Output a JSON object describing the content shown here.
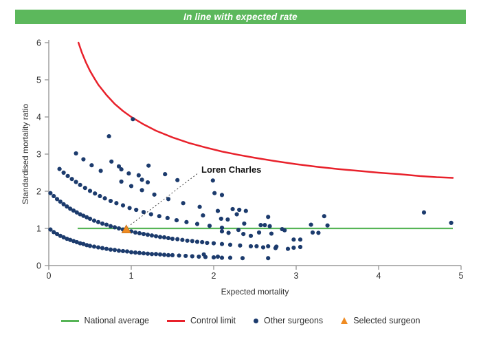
{
  "banner": {
    "text": "In line with expected rate",
    "bg_color": "#5cb85c",
    "text_color": "#ffffff"
  },
  "chart_data": {
    "type": "scatter",
    "title": "In line with expected rate",
    "xlabel": "Expected mortality",
    "ylabel": "Standardised mortality ratio",
    "xlim": [
      0,
      5
    ],
    "ylim": [
      0,
      6
    ],
    "xticks": [
      0,
      1,
      2,
      3,
      4,
      5
    ],
    "yticks": [
      0,
      1,
      2,
      3,
      4,
      5,
      6
    ],
    "grid": false,
    "legend_position": "bottom",
    "axis_color": "#9a9a9a",
    "tick_text_color": "#303030",
    "national_average": {
      "label": "National average",
      "color": "#56b456",
      "y": 1,
      "x_start": 0.35,
      "x_end": 4.9
    },
    "control_limit": {
      "label": "Control limit",
      "color": "#e8212b",
      "points": [
        [
          0.36,
          6.0
        ],
        [
          0.4,
          5.74
        ],
        [
          0.45,
          5.47
        ],
        [
          0.5,
          5.24
        ],
        [
          0.55,
          5.05
        ],
        [
          0.6,
          4.87
        ],
        [
          0.7,
          4.59
        ],
        [
          0.8,
          4.35
        ],
        [
          0.9,
          4.16
        ],
        [
          1.0,
          4.0
        ],
        [
          1.15,
          3.8
        ],
        [
          1.3,
          3.63
        ],
        [
          1.5,
          3.45
        ],
        [
          1.7,
          3.3
        ],
        [
          1.9,
          3.18
        ],
        [
          2.1,
          3.07
        ],
        [
          2.3,
          2.98
        ],
        [
          2.5,
          2.9
        ],
        [
          2.75,
          2.81
        ],
        [
          3.0,
          2.73
        ],
        [
          3.25,
          2.66
        ],
        [
          3.5,
          2.6
        ],
        [
          3.75,
          2.55
        ],
        [
          4.0,
          2.5
        ],
        [
          4.25,
          2.46
        ],
        [
          4.5,
          2.41
        ],
        [
          4.7,
          2.38
        ],
        [
          4.9,
          2.36
        ]
      ]
    },
    "other_surgeons": {
      "label": "Other surgeons",
      "color": "#1c3b6d",
      "points": [
        [
          0.02,
          0.97
        ],
        [
          0.06,
          0.9
        ],
        [
          0.1,
          0.85
        ],
        [
          0.14,
          0.8
        ],
        [
          0.18,
          0.76
        ],
        [
          0.22,
          0.72
        ],
        [
          0.26,
          0.69
        ],
        [
          0.3,
          0.66
        ],
        [
          0.34,
          0.63
        ],
        [
          0.38,
          0.6
        ],
        [
          0.42,
          0.58
        ],
        [
          0.46,
          0.55
        ],
        [
          0.5,
          0.53
        ],
        [
          0.55,
          0.51
        ],
        [
          0.6,
          0.49
        ],
        [
          0.65,
          0.47
        ],
        [
          0.7,
          0.45
        ],
        [
          0.75,
          0.43
        ],
        [
          0.8,
          0.42
        ],
        [
          0.85,
          0.4
        ],
        [
          0.9,
          0.39
        ],
        [
          0.95,
          0.38
        ],
        [
          1.0,
          0.36
        ],
        [
          1.05,
          0.35
        ],
        [
          1.1,
          0.34
        ],
        [
          1.15,
          0.33
        ],
        [
          1.2,
          0.32
        ],
        [
          1.25,
          0.31
        ],
        [
          1.3,
          0.31
        ],
        [
          1.35,
          0.3
        ],
        [
          1.4,
          0.29
        ],
        [
          1.45,
          0.28
        ],
        [
          1.5,
          0.28
        ],
        [
          1.58,
          0.27
        ],
        [
          1.66,
          0.26
        ],
        [
          1.74,
          0.25
        ],
        [
          1.82,
          0.24
        ],
        [
          1.9,
          0.23
        ],
        [
          2.0,
          0.22
        ],
        [
          2.1,
          0.21
        ],
        [
          2.2,
          0.21
        ],
        [
          2.35,
          0.2
        ],
        [
          2.66,
          0.2
        ],
        [
          0.02,
          1.95
        ],
        [
          0.06,
          1.87
        ],
        [
          0.1,
          1.79
        ],
        [
          0.14,
          1.72
        ],
        [
          0.18,
          1.65
        ],
        [
          0.22,
          1.59
        ],
        [
          0.26,
          1.53
        ],
        [
          0.3,
          1.48
        ],
        [
          0.34,
          1.43
        ],
        [
          0.38,
          1.38
        ],
        [
          0.42,
          1.34
        ],
        [
          0.46,
          1.3
        ],
        [
          0.5,
          1.26
        ],
        [
          0.55,
          1.21
        ],
        [
          0.6,
          1.17
        ],
        [
          0.65,
          1.13
        ],
        [
          0.7,
          1.1
        ],
        [
          0.75,
          1.06
        ],
        [
          0.8,
          1.03
        ],
        [
          0.85,
          1.0
        ],
        [
          0.9,
          0.97
        ],
        [
          0.95,
          0.94
        ],
        [
          1.0,
          0.92
        ],
        [
          1.05,
          0.89
        ],
        [
          1.1,
          0.87
        ],
        [
          1.15,
          0.85
        ],
        [
          1.2,
          0.83
        ],
        [
          1.25,
          0.81
        ],
        [
          1.3,
          0.79
        ],
        [
          1.35,
          0.77
        ],
        [
          1.4,
          0.76
        ],
        [
          1.45,
          0.74
        ],
        [
          1.5,
          0.72
        ],
        [
          1.56,
          0.71
        ],
        [
          1.62,
          0.69
        ],
        [
          1.68,
          0.67
        ],
        [
          1.74,
          0.66
        ],
        [
          1.8,
          0.64
        ],
        [
          1.86,
          0.63
        ],
        [
          1.92,
          0.61
        ],
        [
          2.0,
          0.6
        ],
        [
          2.1,
          0.58
        ],
        [
          2.2,
          0.56
        ],
        [
          2.32,
          0.54
        ],
        [
          2.45,
          0.52
        ],
        [
          2.6,
          0.49
        ],
        [
          2.75,
          0.47
        ],
        [
          2.9,
          0.45
        ],
        [
          0.13,
          2.6
        ],
        [
          0.18,
          2.5
        ],
        [
          0.23,
          2.41
        ],
        [
          0.28,
          2.33
        ],
        [
          0.33,
          2.25
        ],
        [
          0.38,
          2.17
        ],
        [
          0.44,
          2.09
        ],
        [
          0.5,
          2.01
        ],
        [
          0.56,
          1.94
        ],
        [
          0.62,
          1.87
        ],
        [
          0.68,
          1.81
        ],
        [
          0.75,
          1.74
        ],
        [
          0.82,
          1.68
        ],
        [
          0.9,
          1.62
        ],
        [
          0.98,
          1.55
        ],
        [
          1.06,
          1.5
        ],
        [
          1.15,
          1.44
        ],
        [
          1.24,
          1.38
        ],
        [
          1.34,
          1.33
        ],
        [
          1.44,
          1.28
        ],
        [
          1.55,
          1.22
        ],
        [
          1.67,
          1.17
        ],
        [
          1.8,
          1.12
        ],
        [
          1.95,
          1.07
        ],
        [
          2.1,
          1.02
        ],
        [
          2.3,
          0.96
        ],
        [
          2.55,
          0.89
        ],
        [
          2.7,
          0.86
        ],
        [
          0.33,
          3.02
        ],
        [
          0.42,
          2.86
        ],
        [
          0.52,
          2.7
        ],
        [
          0.63,
          2.55
        ],
        [
          0.88,
          2.26
        ],
        [
          1.0,
          2.14
        ],
        [
          1.13,
          2.03
        ],
        [
          1.28,
          1.91
        ],
        [
          1.45,
          1.79
        ],
        [
          1.63,
          1.68
        ],
        [
          1.83,
          1.58
        ],
        [
          2.05,
          1.47
        ],
        [
          2.28,
          1.38
        ],
        [
          0.76,
          2.8
        ],
        [
          0.85,
          2.67
        ],
        [
          0.88,
          2.59
        ],
        [
          0.97,
          2.48
        ],
        [
          1.09,
          2.43
        ],
        [
          1.13,
          2.31
        ],
        [
          1.2,
          2.24
        ],
        [
          0.73,
          3.48
        ],
        [
          1.02,
          3.94
        ],
        [
          1.21,
          2.69
        ],
        [
          1.41,
          2.46
        ],
        [
          1.56,
          2.3
        ],
        [
          1.99,
          2.29
        ],
        [
          2.01,
          1.95
        ],
        [
          2.1,
          1.9
        ],
        [
          1.87,
          1.35
        ],
        [
          2.09,
          1.26
        ],
        [
          2.17,
          1.24
        ],
        [
          2.23,
          1.52
        ],
        [
          2.31,
          1.5
        ],
        [
          2.39,
          1.47
        ],
        [
          2.37,
          1.13
        ],
        [
          2.57,
          1.09
        ],
        [
          2.62,
          1.09
        ],
        [
          2.66,
          1.31
        ],
        [
          2.68,
          1.06
        ],
        [
          2.83,
          0.98
        ],
        [
          2.86,
          0.95
        ],
        [
          2.97,
          0.7
        ],
        [
          3.05,
          0.7
        ],
        [
          2.97,
          0.48
        ],
        [
          3.05,
          0.5
        ],
        [
          2.52,
          0.52
        ],
        [
          2.66,
          0.52
        ],
        [
          2.76,
          0.51
        ],
        [
          3.18,
          1.1
        ],
        [
          3.34,
          1.33
        ],
        [
          3.2,
          0.89
        ],
        [
          3.27,
          0.88
        ],
        [
          3.38,
          1.08
        ],
        [
          4.55,
          1.43
        ],
        [
          4.88,
          1.15
        ],
        [
          2.1,
          0.92
        ],
        [
          2.18,
          0.88
        ],
        [
          2.36,
          0.85
        ],
        [
          2.45,
          0.8
        ],
        [
          1.88,
          0.3
        ],
        [
          2.05,
          0.24
        ]
      ]
    },
    "selected_surgeon": {
      "label": "Selected surgeon",
      "name": "Loren Charles",
      "color": "#ef8b22",
      "edge_color": "#c2701c",
      "point": [
        0.94,
        0.97
      ]
    },
    "annotation": {
      "text": "Loren Charles",
      "text_x": 1.85,
      "text_y": 2.57,
      "line_from": [
        1.8,
        2.47
      ],
      "line_to": [
        0.97,
        1.06
      ]
    }
  }
}
